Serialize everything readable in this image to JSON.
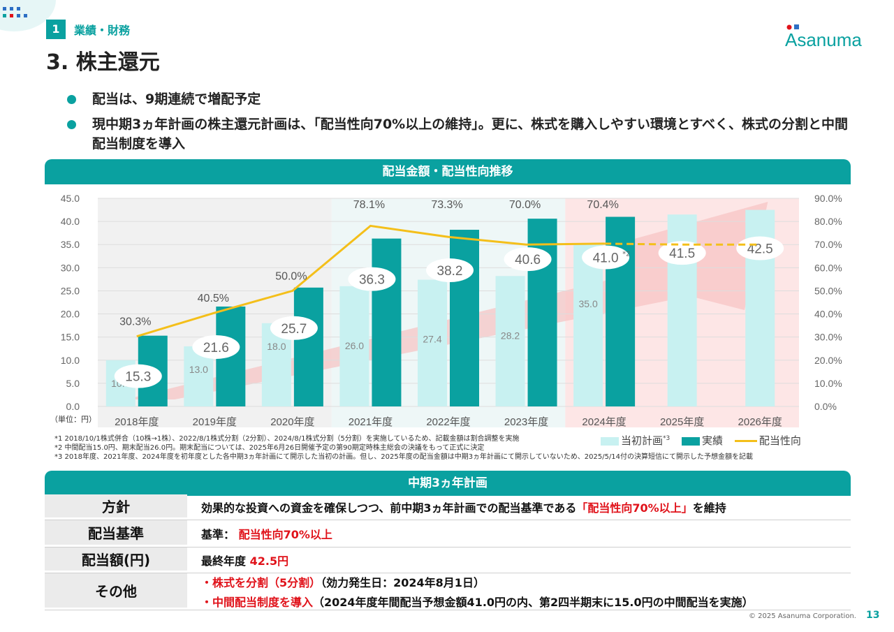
{
  "header": {
    "section_number": "1",
    "section_name": "業績・財務",
    "title": "3. 株主還元",
    "logo_text": "Asanuma"
  },
  "bullets": [
    "配当は、9期連続で増配予定",
    "現中期3ヵ年計画の株主還元計画は、「配当性向70%以上の維持」。更に、株式を購入しやすい環境とすべく、株式の分割と中間配当制度を導入"
  ],
  "chart_band_title": "配当金額・配当性向推移",
  "chart_data": {
    "type": "bar",
    "categories": [
      "2018年度",
      "2019年度",
      "2020年度",
      "2021年度",
      "2022年度",
      "2023年度",
      "2024年度",
      "2025年度",
      "2026年度"
    ],
    "series": [
      {
        "name": "当初計画",
        "values": [
          10.0,
          13.0,
          18.0,
          26.0,
          27.4,
          28.2,
          35.0,
          41.5,
          42.5
        ]
      },
      {
        "name": "実績",
        "values": [
          15.3,
          21.6,
          25.7,
          36.3,
          38.2,
          40.6,
          41.0,
          null,
          null
        ]
      },
      {
        "name": "配当性向",
        "values": [
          30.3,
          40.5,
          50.0,
          78.1,
          73.3,
          70.0,
          70.4,
          70.0,
          70.0
        ],
        "axis": "right",
        "type": "line"
      }
    ],
    "plan_labels": [
      "10.0",
      "13.0",
      "18.0",
      "26.0",
      "27.4",
      "28.2",
      "35.0",
      "41.5",
      "42.5"
    ],
    "actual_labels": [
      "15.3",
      "21.6",
      "25.7",
      "36.3",
      "38.2",
      "40.6",
      "41.0"
    ],
    "actual_note_2024": "*2",
    "payout_labels": [
      "30.3%",
      "40.5%",
      "50.0%",
      "78.1%",
      "73.3%",
      "70.0%",
      "70.4%"
    ],
    "left_ticks": [
      "0.0",
      "5.0",
      "10.0",
      "15.0",
      "20.0",
      "25.0",
      "30.0",
      "35.0",
      "40.0",
      "45.0"
    ],
    "right_ticks": [
      "0.0%",
      "10.0%",
      "20.0%",
      "30.0%",
      "40.0%",
      "50.0%",
      "60.0%",
      "70.0%",
      "80.0%",
      "90.0%"
    ],
    "ylim": [
      0,
      45
    ],
    "y2lim": [
      0,
      90
    ],
    "unit_label": "（単位：円）",
    "legend_note": "*3",
    "legend": [
      "当初計画",
      "実績",
      "配当性向"
    ],
    "colors": {
      "plan": "#c8f1f1",
      "actual": "#0aa1a0",
      "payout": "#f4bf1a",
      "band": "#0aa1a0"
    }
  },
  "footnotes": [
    "*1 2018/10/1株式併合（10株→1株）、2022/8/1株式分割（2分割）、2024/8/1株式分割（5分割）を実施しているため、記載金額は割合調整を実施",
    "*2 中間配当15.0円、期末配当26.0円。期末配当については、2025年6月26日開催予定の第90期定時株主総会の決議をもって正式に決定",
    "*3 2018年度、2021年度、2024年度を初年度とした各中期3ヵ年計画にて開示した当初の計画。但し、2025年度の配当金額は中期3ヵ年計画にて開示していないため、2025/5/14付の決算短信にて開示した予想金額を記載"
  ],
  "plan_section": {
    "title": "中期3ヵ年計画",
    "rows": {
      "policy": {
        "label": "方針",
        "pre": "効果的な投資への資金を確保しつつ、前中期3ヵ年計画での配当基準である",
        "em": "「配当性向70%以上」",
        "post": "を維持"
      },
      "standard": {
        "label": "配当基準",
        "pre": "基準：",
        "em": "配当性向70%以上"
      },
      "amount": {
        "label": "配当額(円)",
        "pre": "最終年度",
        "em": "42.5円"
      },
      "other": {
        "label": "その他",
        "line1_em": "・株式を分割（5分割）",
        "line1_post": "（効力発生日：2024年8月1日）",
        "line2_em": "・中間配当制度を導入",
        "line2_post": "（2024年度年間配当予想金額41.0円の内、第2四半期末に15.0円の中間配当を実施）"
      }
    }
  },
  "footer": {
    "copyright": "© 2025 Asanuma Corporation.",
    "page_number": "13"
  }
}
